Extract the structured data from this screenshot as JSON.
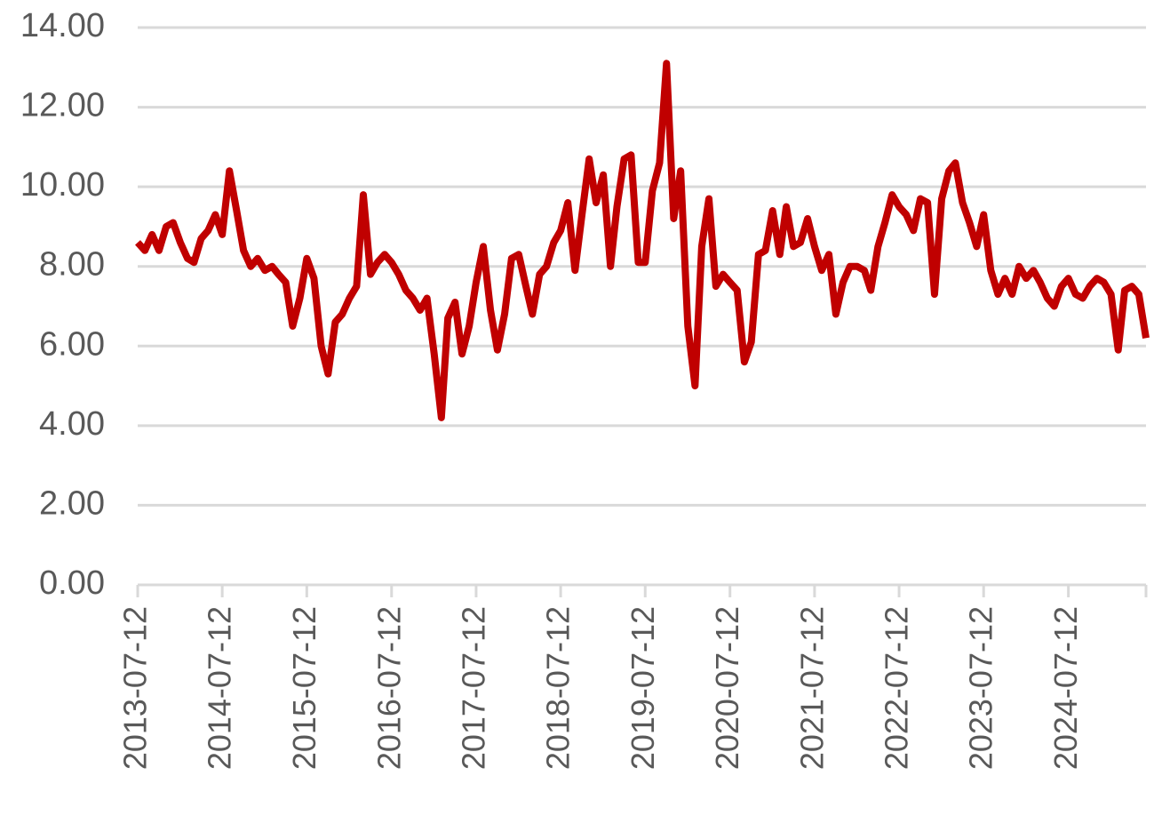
{
  "chart_data": {
    "type": "line",
    "x": [
      "2013-07-12",
      "2013-08-12",
      "2013-09-12",
      "2013-10-12",
      "2013-11-12",
      "2013-12-12",
      "2014-01-12",
      "2014-02-12",
      "2014-03-12",
      "2014-04-12",
      "2014-05-12",
      "2014-06-12",
      "2014-07-12",
      "2014-08-12",
      "2014-09-12",
      "2014-10-12",
      "2014-11-12",
      "2014-12-12",
      "2015-01-12",
      "2015-02-12",
      "2015-03-12",
      "2015-04-12",
      "2015-05-12",
      "2015-06-12",
      "2015-07-12",
      "2015-08-12",
      "2015-09-12",
      "2015-10-12",
      "2015-11-12",
      "2015-12-12",
      "2016-01-12",
      "2016-02-12",
      "2016-03-12",
      "2016-04-12",
      "2016-05-12",
      "2016-06-12",
      "2016-07-12",
      "2016-08-12",
      "2016-09-12",
      "2016-10-12",
      "2016-11-12",
      "2016-12-12",
      "2017-01-12",
      "2017-02-12",
      "2017-03-12",
      "2017-04-12",
      "2017-05-12",
      "2017-06-12",
      "2017-07-12",
      "2017-08-12",
      "2017-09-12",
      "2017-10-12",
      "2017-11-12",
      "2017-12-12",
      "2018-01-12",
      "2018-02-12",
      "2018-03-12",
      "2018-04-12",
      "2018-05-12",
      "2018-06-12",
      "2018-07-12",
      "2018-08-12",
      "2018-09-12",
      "2018-10-12",
      "2018-11-12",
      "2018-12-12",
      "2019-01-12",
      "2019-02-12",
      "2019-03-12",
      "2019-04-12",
      "2019-05-12",
      "2019-06-12",
      "2019-07-12",
      "2019-08-12",
      "2019-09-12",
      "2019-10-12",
      "2019-11-12",
      "2019-12-12",
      "2020-01-12",
      "2020-02-12",
      "2020-03-12",
      "2020-04-12",
      "2020-05-12",
      "2020-06-12",
      "2020-07-12",
      "2020-08-12",
      "2020-09-12",
      "2020-10-12",
      "2020-11-12",
      "2020-12-12",
      "2021-01-12",
      "2021-02-12",
      "2021-03-12",
      "2021-04-12",
      "2021-05-12",
      "2021-06-12",
      "2021-07-12",
      "2021-08-12",
      "2021-09-12",
      "2021-10-12",
      "2021-11-12",
      "2021-12-12",
      "2022-01-12",
      "2022-02-12",
      "2022-03-12",
      "2022-04-12",
      "2022-05-12",
      "2022-06-12",
      "2022-07-12",
      "2022-08-12",
      "2022-09-12",
      "2022-10-12",
      "2022-11-12",
      "2022-12-12",
      "2023-01-12",
      "2023-02-12",
      "2023-03-12",
      "2023-04-12",
      "2023-05-12",
      "2023-06-12",
      "2023-07-12",
      "2023-08-12",
      "2023-09-12",
      "2023-10-12",
      "2023-11-12",
      "2023-12-12",
      "2024-01-12",
      "2024-02-12",
      "2024-03-12",
      "2024-04-12",
      "2024-05-12",
      "2024-06-12",
      "2024-07-12",
      "2024-08-12",
      "2024-09-12",
      "2024-10-12",
      "2024-11-12",
      "2024-12-12",
      "2025-01-12",
      "2025-02-12",
      "2025-03-12",
      "2025-04-12",
      "2025-05-12",
      "2025-06-12"
    ],
    "values": [
      8.6,
      8.4,
      8.8,
      8.4,
      9.0,
      9.1,
      8.6,
      8.2,
      8.1,
      8.7,
      8.9,
      9.3,
      8.8,
      10.4,
      9.4,
      8.4,
      8.0,
      8.2,
      7.9,
      8.0,
      7.8,
      7.6,
      6.5,
      7.2,
      8.2,
      7.7,
      6.0,
      5.3,
      6.6,
      6.8,
      7.2,
      7.5,
      9.8,
      7.8,
      8.1,
      8.3,
      8.1,
      7.8,
      7.4,
      7.2,
      6.9,
      7.2,
      5.8,
      4.2,
      6.7,
      7.1,
      5.8,
      6.5,
      7.6,
      8.5,
      6.9,
      5.9,
      6.8,
      8.2,
      8.3,
      7.5,
      6.8,
      7.8,
      8.0,
      8.6,
      8.9,
      9.6,
      7.9,
      9.3,
      10.7,
      9.6,
      10.3,
      8.0,
      9.5,
      10.7,
      10.8,
      8.1,
      8.1,
      9.9,
      10.6,
      13.1,
      9.2,
      10.4,
      6.5,
      5.0,
      8.5,
      9.7,
      7.5,
      7.8,
      7.6,
      7.4,
      5.6,
      6.1,
      8.3,
      8.4,
      9.4,
      8.3,
      9.5,
      8.5,
      8.6,
      9.2,
      8.5,
      7.9,
      8.3,
      6.8,
      7.6,
      8.0,
      8.0,
      7.9,
      7.4,
      8.5,
      9.1,
      9.8,
      9.5,
      9.3,
      8.9,
      9.7,
      9.6,
      7.3,
      9.7,
      10.4,
      10.6,
      9.6,
      9.1,
      8.5,
      9.3,
      7.9,
      7.3,
      7.7,
      7.3,
      8.0,
      7.7,
      7.9,
      7.6,
      7.2,
      7.0,
      7.5,
      7.7,
      7.3,
      7.2,
      7.5,
      7.7,
      7.6,
      7.3,
      5.9,
      7.4,
      7.5,
      7.3,
      6.2
    ],
    "color": "#c00000",
    "xlim": [
      "2013-07-12",
      "2025-06-12"
    ],
    "xticks": [
      "2013-07-12",
      "2014-07-12",
      "2015-07-12",
      "2016-07-12",
      "2017-07-12",
      "2018-07-12",
      "2019-07-12",
      "2020-07-12",
      "2021-07-12",
      "2022-07-12",
      "2023-07-12",
      "2024-07-12"
    ],
    "ylim": [
      0,
      14
    ],
    "yticks": [
      {
        "value": 0,
        "label": "0.00"
      },
      {
        "value": 2,
        "label": "2.00"
      },
      {
        "value": 4,
        "label": "4.00"
      },
      {
        "value": 6,
        "label": "6.00"
      },
      {
        "value": 8,
        "label": "8.00"
      },
      {
        "value": 10,
        "label": "10.00"
      },
      {
        "value": 12,
        "label": "12.00"
      },
      {
        "value": 14,
        "label": "14.00"
      }
    ],
    "grid": true
  }
}
